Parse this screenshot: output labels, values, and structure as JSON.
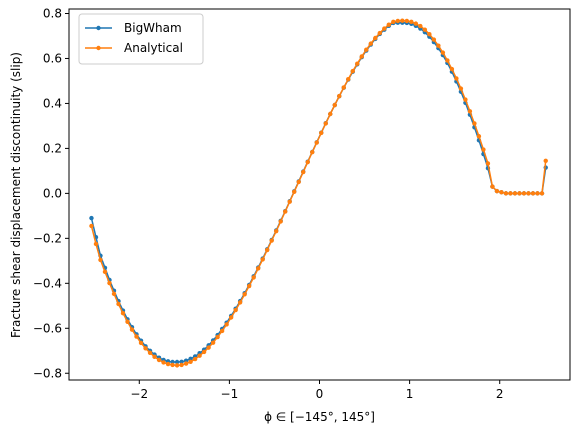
{
  "chart_data": {
    "type": "line",
    "title": "",
    "xlabel": "ϕ ∈ [−145°, 145°]",
    "ylabel": "Fracture shear displacement discontinuity (slip)",
    "xlim": [
      -2.78,
      2.78
    ],
    "ylim": [
      -0.83,
      0.82
    ],
    "x_ticks": [
      -2,
      -1,
      0,
      1,
      2
    ],
    "x_tick_labels": [
      "−2",
      "−1",
      "0",
      "1",
      "2"
    ],
    "y_ticks": [
      -0.8,
      -0.6,
      -0.4,
      -0.2,
      0.0,
      0.2,
      0.4,
      0.6,
      0.8
    ],
    "y_tick_labels": [
      "−0.8",
      "−0.6",
      "−0.4",
      "−0.2",
      "0.0",
      "0.2",
      "0.4",
      "0.6",
      "0.8"
    ],
    "grid": false,
    "legend_position": "top-left",
    "series": [
      {
        "name": "BigWham",
        "color": "#1f77b4",
        "x": [
          -2.5307,
          -2.4807,
          -2.4307,
          -2.3807,
          -2.3307,
          -2.2807,
          -2.2307,
          -2.1807,
          -2.1307,
          -2.0807,
          -2.0307,
          -1.9807,
          -1.9307,
          -1.8807,
          -1.8307,
          -1.7807,
          -1.7307,
          -1.6807,
          -1.6307,
          -1.5807,
          -1.5307,
          -1.4807,
          -1.4307,
          -1.3807,
          -1.3307,
          -1.2807,
          -1.2307,
          -1.1807,
          -1.1307,
          -1.0807,
          -1.0307,
          -0.9807,
          -0.9307,
          -0.8807,
          -0.8307,
          -0.7807,
          -0.7307,
          -0.6807,
          -0.6307,
          -0.5807,
          -0.5307,
          -0.4807,
          -0.4307,
          -0.3807,
          -0.3307,
          -0.2807,
          -0.2307,
          -0.1807,
          -0.1307,
          -0.0807,
          -0.0307,
          0.0193,
          0.0693,
          0.1193,
          0.1693,
          0.2193,
          0.2693,
          0.3193,
          0.3693,
          0.4193,
          0.4693,
          0.5193,
          0.5693,
          0.6193,
          0.6693,
          0.7193,
          0.7693,
          0.8193,
          0.8693,
          0.9193,
          0.9693,
          1.0193,
          1.0693,
          1.1193,
          1.1693,
          1.2193,
          1.2693,
          1.3193,
          1.3693,
          1.4193,
          1.4693,
          1.5193,
          1.5693,
          1.6193,
          1.6693,
          1.7193,
          1.7693,
          1.8193,
          1.8693,
          1.9193,
          1.9693,
          2.0193,
          2.0693,
          2.1193,
          2.1693,
          2.2193,
          2.2693,
          2.3193,
          2.3693,
          2.4193,
          2.4693,
          2.5107
        ],
        "y": [
          -0.11,
          -0.195,
          -0.277,
          -0.331,
          -0.385,
          -0.433,
          -0.479,
          -0.521,
          -0.56,
          -0.595,
          -0.627,
          -0.655,
          -0.68,
          -0.7,
          -0.717,
          -0.731,
          -0.741,
          -0.747,
          -0.75,
          -0.75,
          -0.749,
          -0.744,
          -0.736,
          -0.725,
          -0.711,
          -0.695,
          -0.676,
          -0.654,
          -0.63,
          -0.603,
          -0.575,
          -0.545,
          -0.513,
          -0.479,
          -0.444,
          -0.407,
          -0.369,
          -0.33,
          -0.29,
          -0.249,
          -0.207,
          -0.165,
          -0.122,
          -0.079,
          -0.035,
          0.009,
          0.053,
          0.097,
          0.141,
          0.184,
          0.227,
          0.27,
          0.312,
          0.353,
          0.393,
          0.432,
          0.47,
          0.506,
          0.541,
          0.574,
          0.606,
          0.635,
          0.662,
          0.687,
          0.709,
          0.728,
          0.745,
          0.758,
          0.759,
          0.759,
          0.758,
          0.754,
          0.745,
          0.733,
          0.717,
          0.697,
          0.673,
          0.646,
          0.615,
          0.58,
          0.541,
          0.498,
          0.452,
          0.403,
          0.35,
          0.294,
          0.236,
          0.175,
          0.112,
          0.03,
          0.01,
          0.005,
          0.0,
          0.0,
          0.0,
          0.0,
          0.0,
          0.0,
          0.0,
          0.0,
          0.0,
          0.115
        ]
      },
      {
        "name": "Analytical",
        "color": "#ff7f0e",
        "x": [
          -2.5307,
          -2.4807,
          -2.4307,
          -2.3807,
          -2.3307,
          -2.2807,
          -2.2307,
          -2.1807,
          -2.1307,
          -2.0807,
          -2.0307,
          -1.9807,
          -1.9307,
          -1.8807,
          -1.8307,
          -1.7807,
          -1.7307,
          -1.6807,
          -1.6307,
          -1.5807,
          -1.5307,
          -1.4807,
          -1.4307,
          -1.3807,
          -1.3307,
          -1.2807,
          -1.2307,
          -1.1807,
          -1.1307,
          -1.0807,
          -1.0307,
          -0.9807,
          -0.9307,
          -0.8807,
          -0.8307,
          -0.7807,
          -0.7307,
          -0.6807,
          -0.6307,
          -0.5807,
          -0.5307,
          -0.4807,
          -0.4307,
          -0.3807,
          -0.3307,
          -0.2807,
          -0.2307,
          -0.1807,
          -0.1307,
          -0.0807,
          -0.0307,
          0.0193,
          0.0693,
          0.1193,
          0.1693,
          0.2193,
          0.2693,
          0.3193,
          0.3693,
          0.4193,
          0.4693,
          0.5193,
          0.5693,
          0.6193,
          0.6693,
          0.7193,
          0.7693,
          0.8193,
          0.8693,
          0.9193,
          0.9693,
          1.0193,
          1.0693,
          1.1193,
          1.1693,
          1.2193,
          1.2693,
          1.3193,
          1.3693,
          1.4193,
          1.4693,
          1.5193,
          1.5693,
          1.6193,
          1.6693,
          1.7193,
          1.7693,
          1.8193,
          1.8693,
          1.9193,
          1.9693,
          2.0193,
          2.0693,
          2.1193,
          2.1693,
          2.2193,
          2.2693,
          2.3193,
          2.3693,
          2.4193,
          2.4693,
          2.5107
        ],
        "y": [
          -0.145,
          -0.225,
          -0.296,
          -0.349,
          -0.399,
          -0.447,
          -0.492,
          -0.533,
          -0.571,
          -0.606,
          -0.637,
          -0.665,
          -0.689,
          -0.709,
          -0.727,
          -0.741,
          -0.752,
          -0.759,
          -0.763,
          -0.765,
          -0.763,
          -0.757,
          -0.749,
          -0.737,
          -0.722,
          -0.705,
          -0.686,
          -0.664,
          -0.639,
          -0.612,
          -0.583,
          -0.552,
          -0.519,
          -0.485,
          -0.449,
          -0.412,
          -0.374,
          -0.334,
          -0.294,
          -0.252,
          -0.21,
          -0.168,
          -0.125,
          -0.081,
          -0.037,
          0.007,
          0.051,
          0.095,
          0.139,
          0.183,
          0.226,
          0.269,
          0.311,
          0.353,
          0.393,
          0.433,
          0.471,
          0.508,
          0.544,
          0.577,
          0.609,
          0.639,
          0.666,
          0.691,
          0.713,
          0.733,
          0.75,
          0.763,
          0.767,
          0.768,
          0.767,
          0.763,
          0.755,
          0.744,
          0.728,
          0.708,
          0.684,
          0.657,
          0.626,
          0.591,
          0.553,
          0.511,
          0.466,
          0.417,
          0.365,
          0.311,
          0.254,
          0.195,
          0.133,
          0.03,
          0.01,
          0.005,
          0.0,
          0.0,
          0.0,
          0.0,
          0.0,
          0.0,
          0.0,
          0.0,
          0.0,
          0.145
        ]
      }
    ]
  }
}
